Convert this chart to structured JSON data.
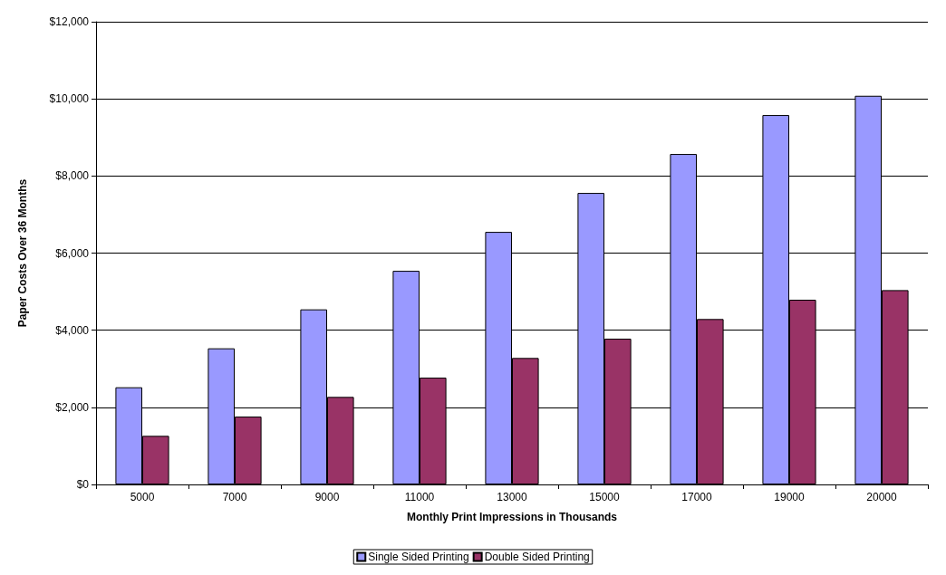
{
  "chart_data": {
    "type": "bar",
    "xlabel": "Monthly Print Impressions in Thousands",
    "ylabel": "Paper Costs Over 36 Months",
    "categories": [
      "5000",
      "7000",
      "9000",
      "11000",
      "13000",
      "15000",
      "17000",
      "19000",
      "20000"
    ],
    "series": [
      {
        "name": "Single Sided Printing",
        "color": "#9999ff",
        "values": [
          2520,
          3530,
          4540,
          5540,
          6550,
          7560,
          8570,
          9580,
          10080
        ]
      },
      {
        "name": "Double Sided Printing",
        "color": "#993366",
        "values": [
          1260,
          1760,
          2270,
          2770,
          3280,
          3780,
          4290,
          4790,
          5040
        ]
      }
    ],
    "ylim": [
      0,
      12000
    ],
    "yticks": [
      {
        "value": 0,
        "label": "$0"
      },
      {
        "value": 2000,
        "label": "$2,000"
      },
      {
        "value": 4000,
        "label": "$4,000"
      },
      {
        "value": 6000,
        "label": "$6,000"
      },
      {
        "value": 8000,
        "label": "$8,000"
      },
      {
        "value": 10000,
        "label": "$10,000"
      },
      {
        "value": 12000,
        "label": "$12,000"
      }
    ],
    "grid": "y",
    "legend": "bottom"
  }
}
